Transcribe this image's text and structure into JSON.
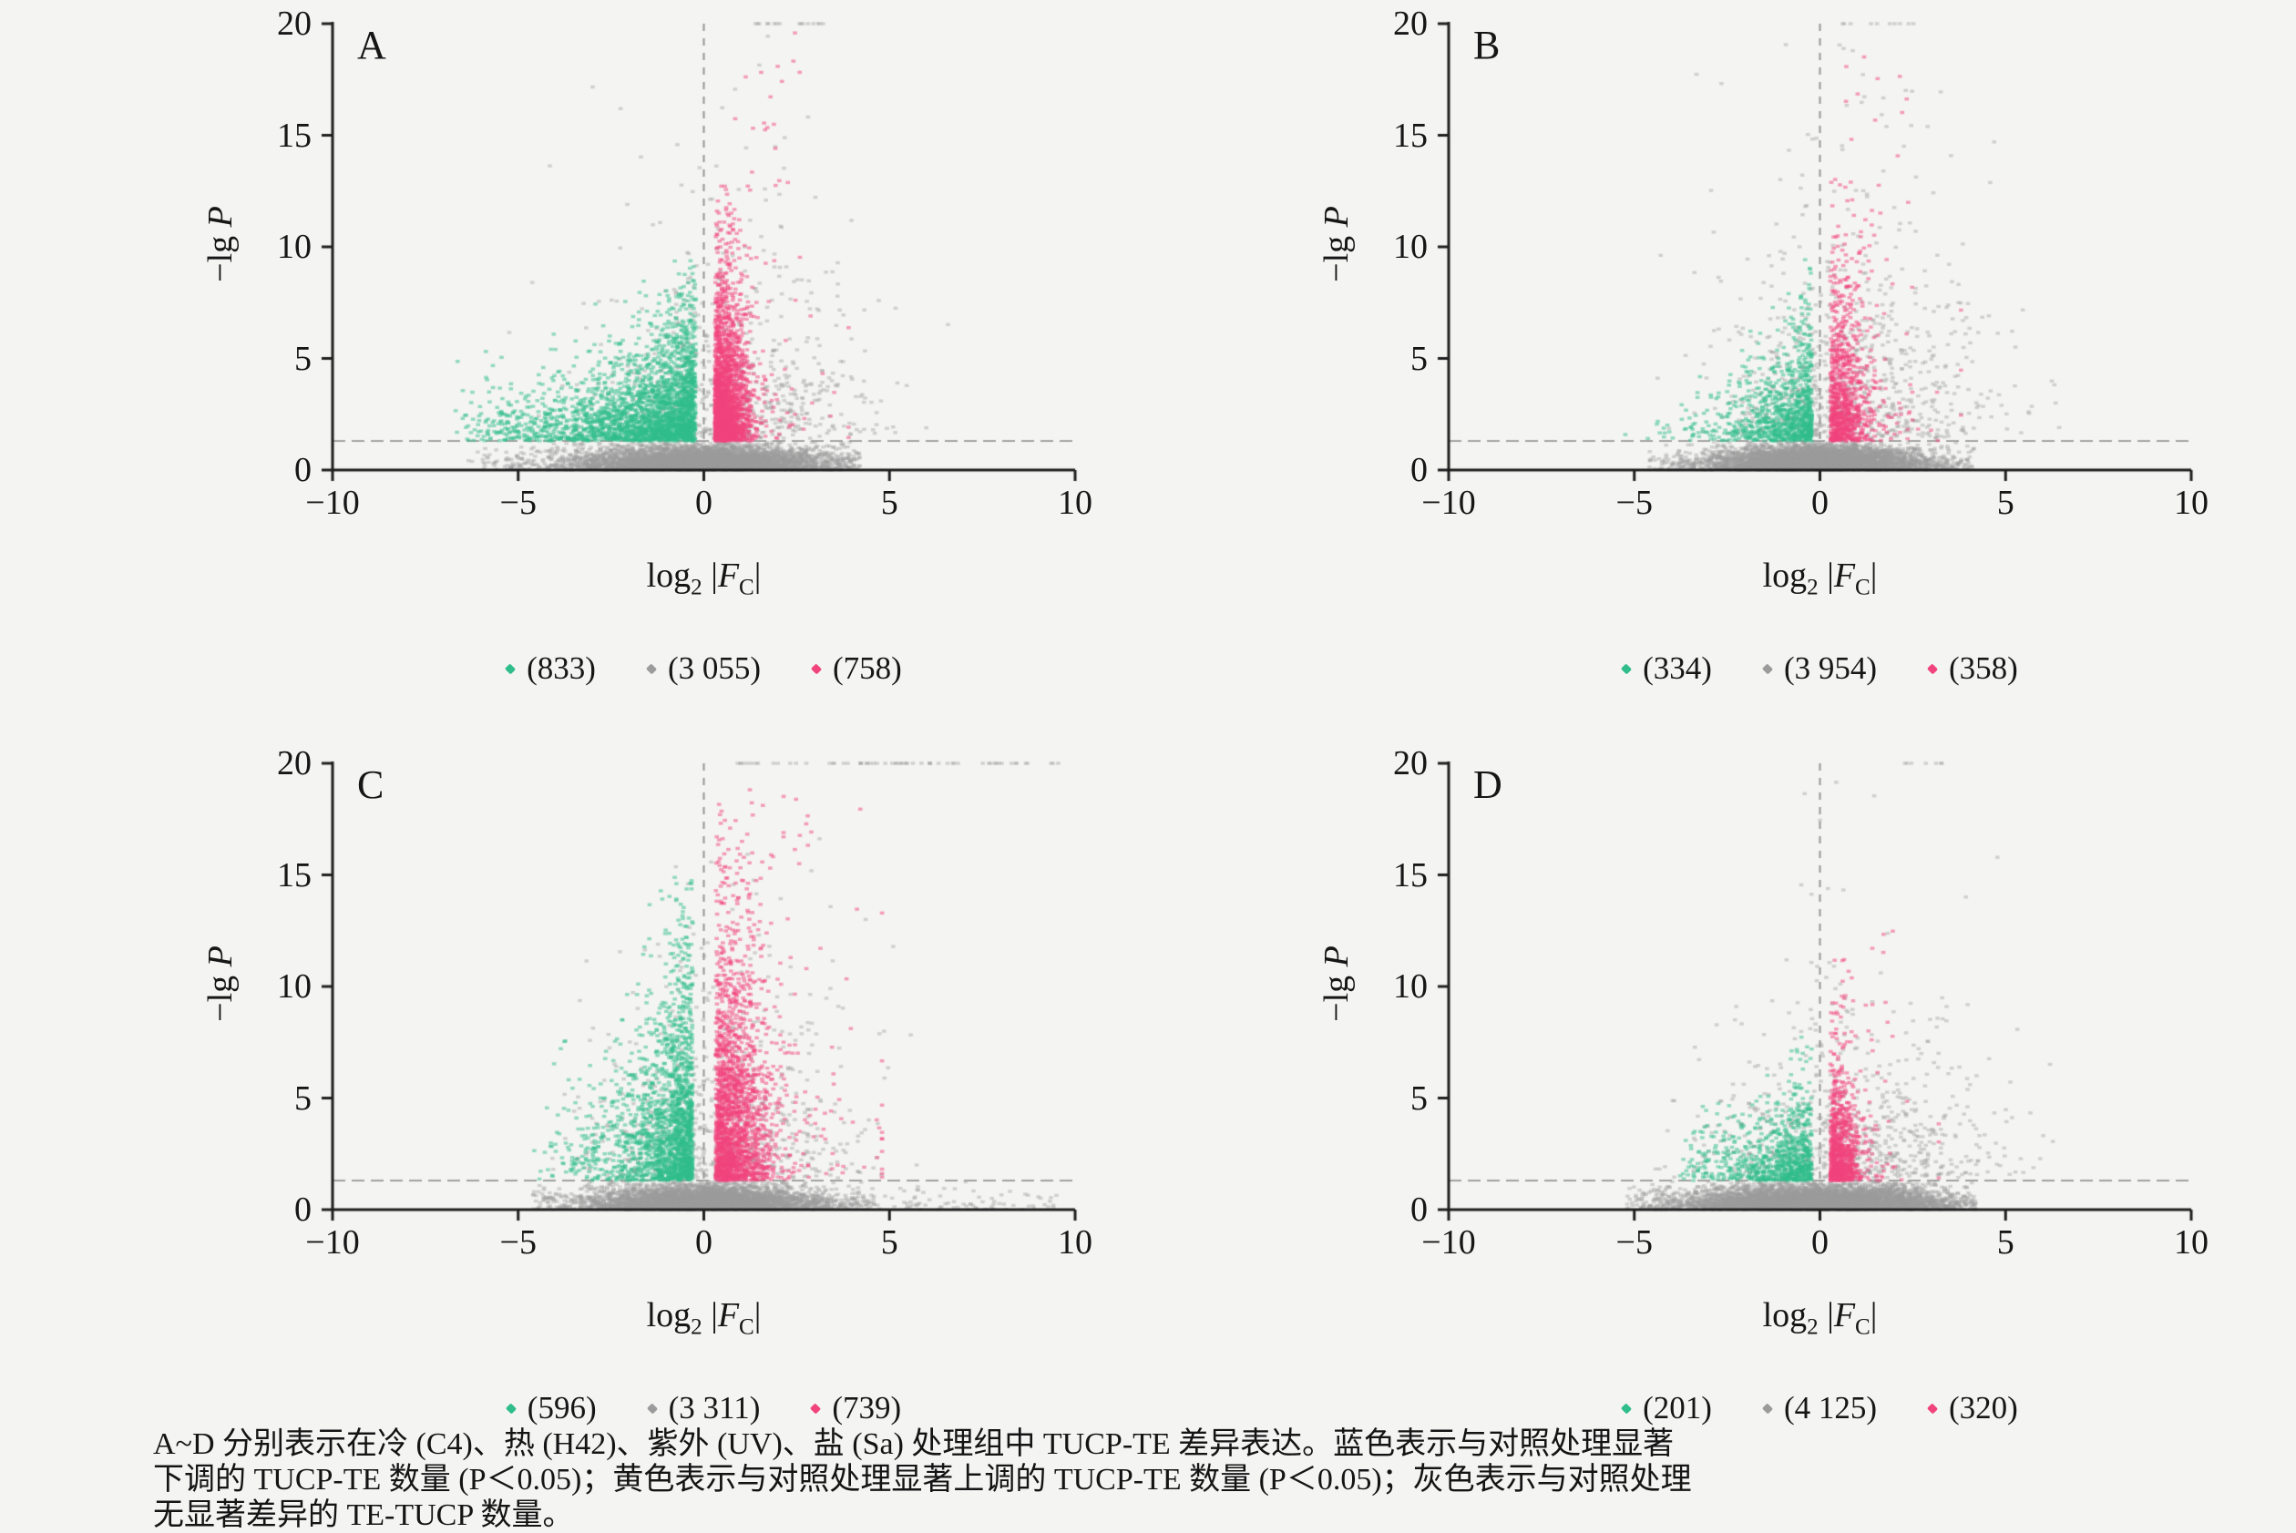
{
  "page": {
    "background": "#f4f4f3"
  },
  "labels": {
    "ylabel": {
      "pre": "−lg ",
      "var": "P"
    },
    "xlabel": {
      "pre": "log",
      "sub": "2",
      "sep": " |",
      "var": "F",
      "vsub": "C",
      "end": "|"
    }
  },
  "axes": {
    "xticks": [
      "−10",
      "−5",
      "0",
      "5",
      "10"
    ],
    "xtick_values": [
      -10,
      -5,
      0,
      5,
      10
    ],
    "yticks": [
      "0",
      "5",
      "10",
      "15",
      "20"
    ],
    "ytick_values": [
      0,
      5,
      10,
      15,
      20
    ],
    "xlim": [
      -10,
      10
    ],
    "ylim": [
      0,
      20
    ],
    "threshold_y": 1.3
  },
  "colors": {
    "down": "#2fbd8c",
    "ns": "#9b9b9b",
    "up": "#f1447e",
    "axis": "#1f1f1f",
    "guide": "#969696"
  },
  "chart_data": [
    {
      "type": "scatter",
      "panel": "A",
      "condition": "冷 (C4)",
      "xlabel": "log2 |FC|",
      "ylabel": "-lg P",
      "xlim": [
        -10,
        10
      ],
      "ylim": [
        0,
        20
      ],
      "threshold_y": 1.3,
      "series": [
        {
          "name": "down-regulated",
          "color": "#2fbd8c",
          "count": 833,
          "legend_label": "(833)"
        },
        {
          "name": "not-significant",
          "color": "#9b9b9b",
          "count": 3055,
          "legend_label": "(3 055)"
        },
        {
          "name": "up-regulated",
          "color": "#f1447e",
          "count": 758,
          "legend_label": "(758)"
        }
      ],
      "gen": {
        "seed": 101,
        "ns_below": {
          "n": 6000,
          "x_sigma": 1.35,
          "wide_p": 0.28,
          "wide_mul": 2.1,
          "x_min": -6.4,
          "x_max": 4.2
        },
        "ns_above": {
          "n": 620,
          "x_mu": 0.7,
          "x_sigma": 1.9,
          "x_min": -6.2,
          "x_max": 7.2,
          "y_mean": 2.9,
          "y_max": 19.6
        },
        "top_line": {
          "n": 16,
          "x0": 1.05,
          "x1": 3.65
        },
        "down": {
          "n": 2600,
          "y_mean": 1.6,
          "y_max": 9.7,
          "tail_base": 0.18,
          "tail_span": 2.0,
          "tail_pow": 1.4,
          "x_off": 0.22,
          "x_min": -6.7
        },
        "up": {
          "n": 2200,
          "y_mean": 2.5,
          "y_max": 12.8,
          "x_off": 0.3,
          "x_sigma": 0.42,
          "x_tail_p": 0.08,
          "x_tail_mean": 0.8,
          "x_max": 3.9,
          "high": {
            "n": 20,
            "x0": 0.8,
            "x1": 2.6,
            "y0": 12.5,
            "y1": 19.8
          }
        }
      }
    },
    {
      "type": "scatter",
      "panel": "B",
      "condition": "热 (H42)",
      "xlabel": "log2 |FC|",
      "ylabel": "-lg P",
      "xlim": [
        -10,
        10
      ],
      "ylim": [
        0,
        20
      ],
      "threshold_y": 1.3,
      "series": [
        {
          "name": "down-regulated",
          "color": "#2fbd8c",
          "count": 334,
          "legend_label": "(334)"
        },
        {
          "name": "not-significant",
          "color": "#9b9b9b",
          "count": 3954,
          "legend_label": "(3 954)"
        },
        {
          "name": "up-regulated",
          "color": "#f1447e",
          "count": 358,
          "legend_label": "(358)"
        }
      ],
      "gen": {
        "seed": 202,
        "ns_below": {
          "n": 6200,
          "x_sigma": 1.15,
          "wide_p": 0.25,
          "wide_mul": 2.0,
          "x_min": -4.6,
          "x_max": 4.2
        },
        "ns_above": {
          "n": 780,
          "x_mu": 0.9,
          "x_sigma": 1.8,
          "x_min": -4.6,
          "x_max": 7.2,
          "y_mean": 3.4,
          "y_max": 19.7
        },
        "top_line": {
          "n": 10,
          "x0": 0.6,
          "x1": 2.8
        },
        "down": {
          "n": 950,
          "y_mean": 1.45,
          "y_max": 9.6,
          "tail_base": 0.15,
          "tail_span": 0.95,
          "tail_pow": 1.4,
          "x_off": 0.22,
          "x_min": -5.3
        },
        "up": {
          "n": 950,
          "y_mean": 2.6,
          "y_max": 13.2,
          "x_off": 0.28,
          "x_sigma": 0.5,
          "x_tail_p": 0.1,
          "x_tail_mean": 0.9,
          "x_max": 3.8,
          "high": {
            "n": 22,
            "x0": 0.7,
            "x1": 2.6,
            "y0": 8.0,
            "y1": 19.6
          }
        }
      }
    },
    {
      "type": "scatter",
      "panel": "C",
      "condition": "紫外 (UV)",
      "xlabel": "log2 |FC|",
      "ylabel": "-lg P",
      "xlim": [
        -10,
        10
      ],
      "ylim": [
        0,
        20
      ],
      "threshold_y": 1.3,
      "series": [
        {
          "name": "down-regulated",
          "color": "#2fbd8c",
          "count": 596,
          "legend_label": "(596)"
        },
        {
          "name": "not-significant",
          "color": "#9b9b9b",
          "count": 3311,
          "legend_label": "(3 311)"
        },
        {
          "name": "up-regulated",
          "color": "#f1447e",
          "count": 739,
          "legend_label": "(739)"
        }
      ],
      "gen": {
        "seed": 303,
        "ns_below": {
          "n": 5600,
          "x_sigma": 1.25,
          "wide_p": 0.25,
          "wide_mul": 2.0,
          "x_min": -4.6,
          "x_max": 4.6,
          "rt_p": 0.015,
          "rt_x0": 4.0,
          "rt_x1": 9.5
        },
        "ns_above": {
          "n": 600,
          "x_mu": 0.6,
          "x_sigma": 1.9,
          "x_min": -4.2,
          "x_max": 9.2,
          "y_mean": 3.0,
          "y_max": 19.6
        },
        "top_line": {
          "n": 60,
          "x0": 0.7,
          "x1": 9.55
        },
        "down": {
          "n": 1900,
          "y_mean": 3.0,
          "y_max": 15.6,
          "tail_base": 0.22,
          "tail_span": 0.8,
          "tail_pow": 1.2,
          "x_off": 0.3,
          "x_min": -4.6
        },
        "up": {
          "n": 2100,
          "y_mean": 3.9,
          "y_max": 18.4,
          "x_off": 0.32,
          "x_sigma": 0.68,
          "x_tail_p": 0.1,
          "x_tail_mean": 1.0,
          "x_max": 4.8,
          "high": {
            "n": 15,
            "x0": 1.0,
            "x1": 3.0,
            "y0": 15.0,
            "y1": 19.5
          }
        }
      }
    },
    {
      "type": "scatter",
      "panel": "D",
      "condition": "盐 (Sa)",
      "xlabel": "log2 |FC|",
      "ylabel": "-lg P",
      "xlim": [
        -10,
        10
      ],
      "ylim": [
        0,
        20
      ],
      "threshold_y": 1.3,
      "series": [
        {
          "name": "down-regulated",
          "color": "#2fbd8c",
          "count": 201,
          "legend_label": "(201)"
        },
        {
          "name": "not-significant",
          "color": "#9b9b9b",
          "count": 4125,
          "legend_label": "(4 125)"
        },
        {
          "name": "up-regulated",
          "color": "#f1447e",
          "count": 320,
          "legend_label": "(320)"
        }
      ],
      "gen": {
        "seed": 404,
        "ns_below": {
          "n": 6400,
          "x_sigma": 1.45,
          "wide_p": 0.3,
          "wide_mul": 1.9,
          "x_min": -5.2,
          "x_max": 4.2
        },
        "ns_above": {
          "n": 700,
          "x_mu": 0.8,
          "x_sigma": 2.0,
          "x_min": -4.8,
          "x_max": 6.6,
          "y_mean": 2.6,
          "y_max": 19.7
        },
        "top_line": {
          "n": 7,
          "x0": 1.9,
          "x1": 3.4
        },
        "down": {
          "n": 850,
          "y_mean": 1.15,
          "y_max": 9.8,
          "tail_base": 0.18,
          "tail_span": 1.35,
          "tail_pow": 1.6,
          "x_off": 0.22,
          "x_min": -3.9
        },
        "up": {
          "n": 950,
          "y_mean": 1.7,
          "y_max": 12.4,
          "x_off": 0.28,
          "x_sigma": 0.4,
          "x_tail_p": 0.07,
          "x_tail_mean": 0.7,
          "x_max": 3.2,
          "high": {
            "n": 10,
            "x0": 0.8,
            "x1": 2.0,
            "y0": 7.0,
            "y1": 12.5
          }
        }
      }
    }
  ],
  "caption": {
    "line1": "A~D 分别表示在冷 (C4)、热 (H42)、紫外 (UV)、盐 (Sa) 处理组中 TUCP-TE 差异表达。蓝色表示与对照处理显著",
    "line2": "下调的 TUCP-TE 数量 (P＜0.05)；黄色表示与对照处理显著上调的 TUCP-TE 数量 (P＜0.05)；灰色表示与对照处理",
    "line3": "无显著差异的 TE-TUCP 数量。"
  }
}
